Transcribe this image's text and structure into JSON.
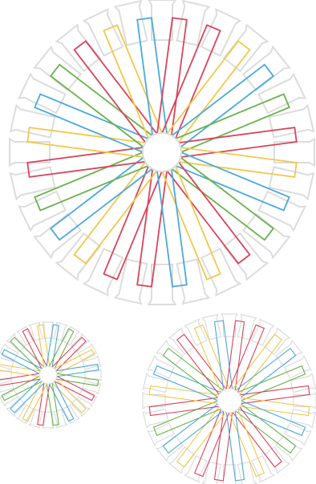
{
  "palette": {
    "red": "#d9445a",
    "blue": "#4aa9dd",
    "green": "#69b24c",
    "yellow": "#f2c84b",
    "gray": "#dcdcdc"
  },
  "wheels": [
    {
      "id": "large",
      "outer_spokes": 28,
      "inner_spokes": 24,
      "inner_color_sequence": [
        "red",
        "red",
        "yellow",
        "blue",
        "green",
        "red",
        "yellow",
        "blue",
        "green",
        "red",
        "yellow",
        "blue",
        "red",
        "red",
        "yellow",
        "blue",
        "green",
        "red",
        "yellow",
        "blue",
        "green",
        "red",
        "yellow",
        "blue"
      ]
    },
    {
      "id": "small-left",
      "outer_spokes": 24,
      "inner_spokes": 20,
      "inner_color_sequence": [
        "red",
        "yellow",
        "blue",
        "green",
        "red",
        "yellow",
        "blue",
        "green",
        "red",
        "yellow",
        "blue",
        "green",
        "red",
        "yellow",
        "blue",
        "green",
        "red",
        "yellow",
        "blue",
        "green"
      ]
    },
    {
      "id": "medium-right",
      "outer_spokes": 28,
      "inner_spokes": 24,
      "inner_color_sequence": [
        "red",
        "red",
        "yellow",
        "blue",
        "green",
        "red",
        "yellow",
        "blue",
        "green",
        "red",
        "yellow",
        "blue",
        "red",
        "red",
        "yellow",
        "blue",
        "green",
        "red",
        "yellow",
        "blue",
        "green",
        "red",
        "yellow",
        "blue"
      ]
    }
  ]
}
